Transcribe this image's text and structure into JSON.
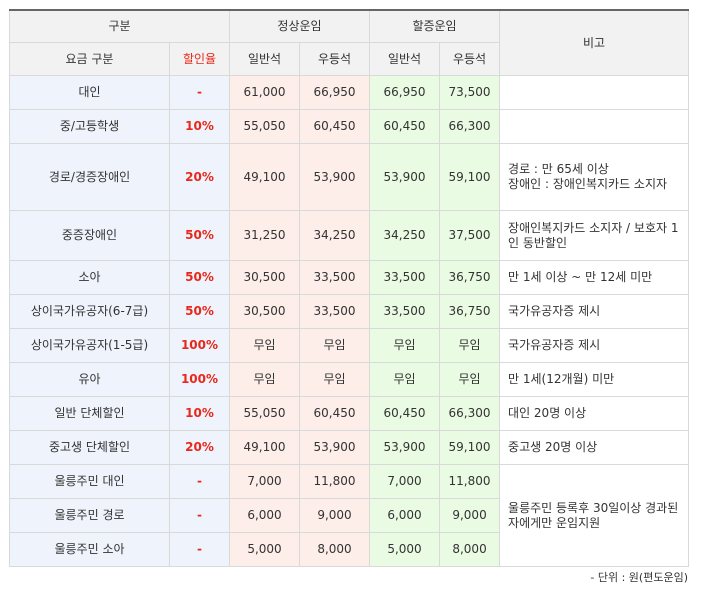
{
  "header": {
    "category": "구분",
    "fare_type": "요금 구분",
    "discount_rate": "할인율",
    "normal_fare": "정상운임",
    "surge_fare": "할증운임",
    "standard_seat": "일반석",
    "premium_seat": "우등석",
    "remarks": "비고"
  },
  "rows": [
    {
      "name": "대인",
      "rate": "-",
      "normal_std": "61,000",
      "normal_prem": "66,950",
      "surge_std": "66,950",
      "surge_prem": "73,500"
    },
    {
      "name": "중/고등학생",
      "rate": "10%",
      "normal_std": "55,050",
      "normal_prem": "60,450",
      "surge_std": "60,450",
      "surge_prem": "66,300"
    },
    {
      "name": "경로/경증장애인",
      "rate": "20%",
      "normal_std": "49,100",
      "normal_prem": "53,900",
      "surge_std": "53,900",
      "surge_prem": "59,100"
    },
    {
      "name": "중증장애인",
      "rate": "50%",
      "normal_std": "31,250",
      "normal_prem": "34,250",
      "surge_std": "34,250",
      "surge_prem": "37,500"
    },
    {
      "name": "소아",
      "rate": "50%",
      "normal_std": "30,500",
      "normal_prem": "33,500",
      "surge_std": "33,500",
      "surge_prem": "36,750"
    },
    {
      "name": "상이국가유공자(6-7급)",
      "rate": "50%",
      "normal_std": "30,500",
      "normal_prem": "33,500",
      "surge_std": "33,500",
      "surge_prem": "36,750"
    },
    {
      "name": "상이국가유공자(1-5급)",
      "rate": "100%",
      "normal_std": "무임",
      "normal_prem": "무임",
      "surge_std": "무임",
      "surge_prem": "무임"
    },
    {
      "name": "유아",
      "rate": "100%",
      "normal_std": "무임",
      "normal_prem": "무임",
      "surge_std": "무임",
      "surge_prem": "무임"
    },
    {
      "name": "일반 단체할인",
      "rate": "10%",
      "normal_std": "55,050",
      "normal_prem": "60,450",
      "surge_std": "60,450",
      "surge_prem": "66,300"
    },
    {
      "name": "중고생 단체할인",
      "rate": "20%",
      "normal_std": "49,100",
      "normal_prem": "53,900",
      "surge_std": "53,900",
      "surge_prem": "59,100"
    },
    {
      "name": "울릉주민 대인",
      "rate": "-",
      "normal_std": "7,000",
      "normal_prem": "11,800",
      "surge_std": "7,000",
      "surge_prem": "11,800"
    },
    {
      "name": "울릉주민 경로",
      "rate": "-",
      "normal_std": "6,000",
      "normal_prem": "9,000",
      "surge_std": "6,000",
      "surge_prem": "9,000"
    },
    {
      "name": "울릉주민 소아",
      "rate": "-",
      "normal_std": "5,000",
      "normal_prem": "8,000",
      "surge_std": "5,000",
      "surge_prem": "8,000"
    }
  ],
  "notes": {
    "empty": "",
    "senior_line1": "경로 : 만 65세 이상",
    "senior_line2": "장애인 : 장애인복지카드 소지자",
    "severe": "장애인복지카드 소지자 / 보호자 1인 동반할인",
    "child": "만 1세 이상 ~ 만 12세 미만",
    "merit_67": "국가유공자증 제시",
    "merit_15": "국가유공자증 제시",
    "infant": "만 1세(12개월) 미만",
    "group_general": "대인 20명 이상",
    "group_student": "중고생 20명 이상",
    "ulleung": "울릉주민 등록후 30일이상 경과된 자에게만 운임지원"
  },
  "footer": {
    "unit": "- 단위 : 원(편도운임)"
  }
}
